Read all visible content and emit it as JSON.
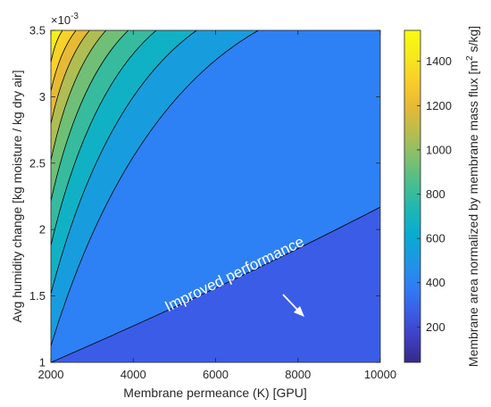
{
  "chart_data": {
    "type": "heatmap",
    "subtype": "filled-contour",
    "xlabel": "Membrane permeance (K) [GPU]",
    "ylabel": "Avg humidity change [kg moisture / kg dry air]",
    "xlim": [
      2000,
      10000
    ],
    "ylim": [
      0.001,
      0.0035
    ],
    "x_ticks": [
      "2000",
      "4000",
      "6000",
      "8000",
      "10000"
    ],
    "y_ticks": [
      "1",
      "1.5",
      "2",
      "2.5",
      "3",
      "3.5"
    ],
    "y_multiplier": "×10",
    "y_multiplier_exp": "-3",
    "grid": false,
    "colorbar": {
      "label_main": "Membrane area normalized by membrane mass flux [m",
      "label_sup": "2",
      "label_end": " s/kg]",
      "ticks": [
        "200",
        "400",
        "600",
        "800",
        "1000",
        "1200",
        "1400"
      ],
      "range": [
        40,
        1540
      ],
      "colormap": "parula"
    },
    "contour_levels": [
      133,
      266,
      399,
      532,
      665,
      798,
      931,
      1064,
      1197,
      1330,
      1463
    ],
    "contour_lines_at_x_top": [
      2280,
      2610,
      2940,
      3340,
      3880,
      4560,
      5540,
      7040,
      10000
    ],
    "annotation": {
      "text": "Improved performance",
      "arrow": "down-right",
      "color": "#ffffff"
    },
    "colors": {
      "parula": [
        "#352a87",
        "#3f3fc4",
        "#3b5de8",
        "#2f7ef6",
        "#1d97e2",
        "#08acd1",
        "#1eb7b3",
        "#48be8f",
        "#80bf6d",
        "#b7bd4e",
        "#e6b935",
        "#f9cd2a",
        "#f5e91d",
        "#f9fb0e"
      ],
      "contour_line": "#000000"
    }
  }
}
